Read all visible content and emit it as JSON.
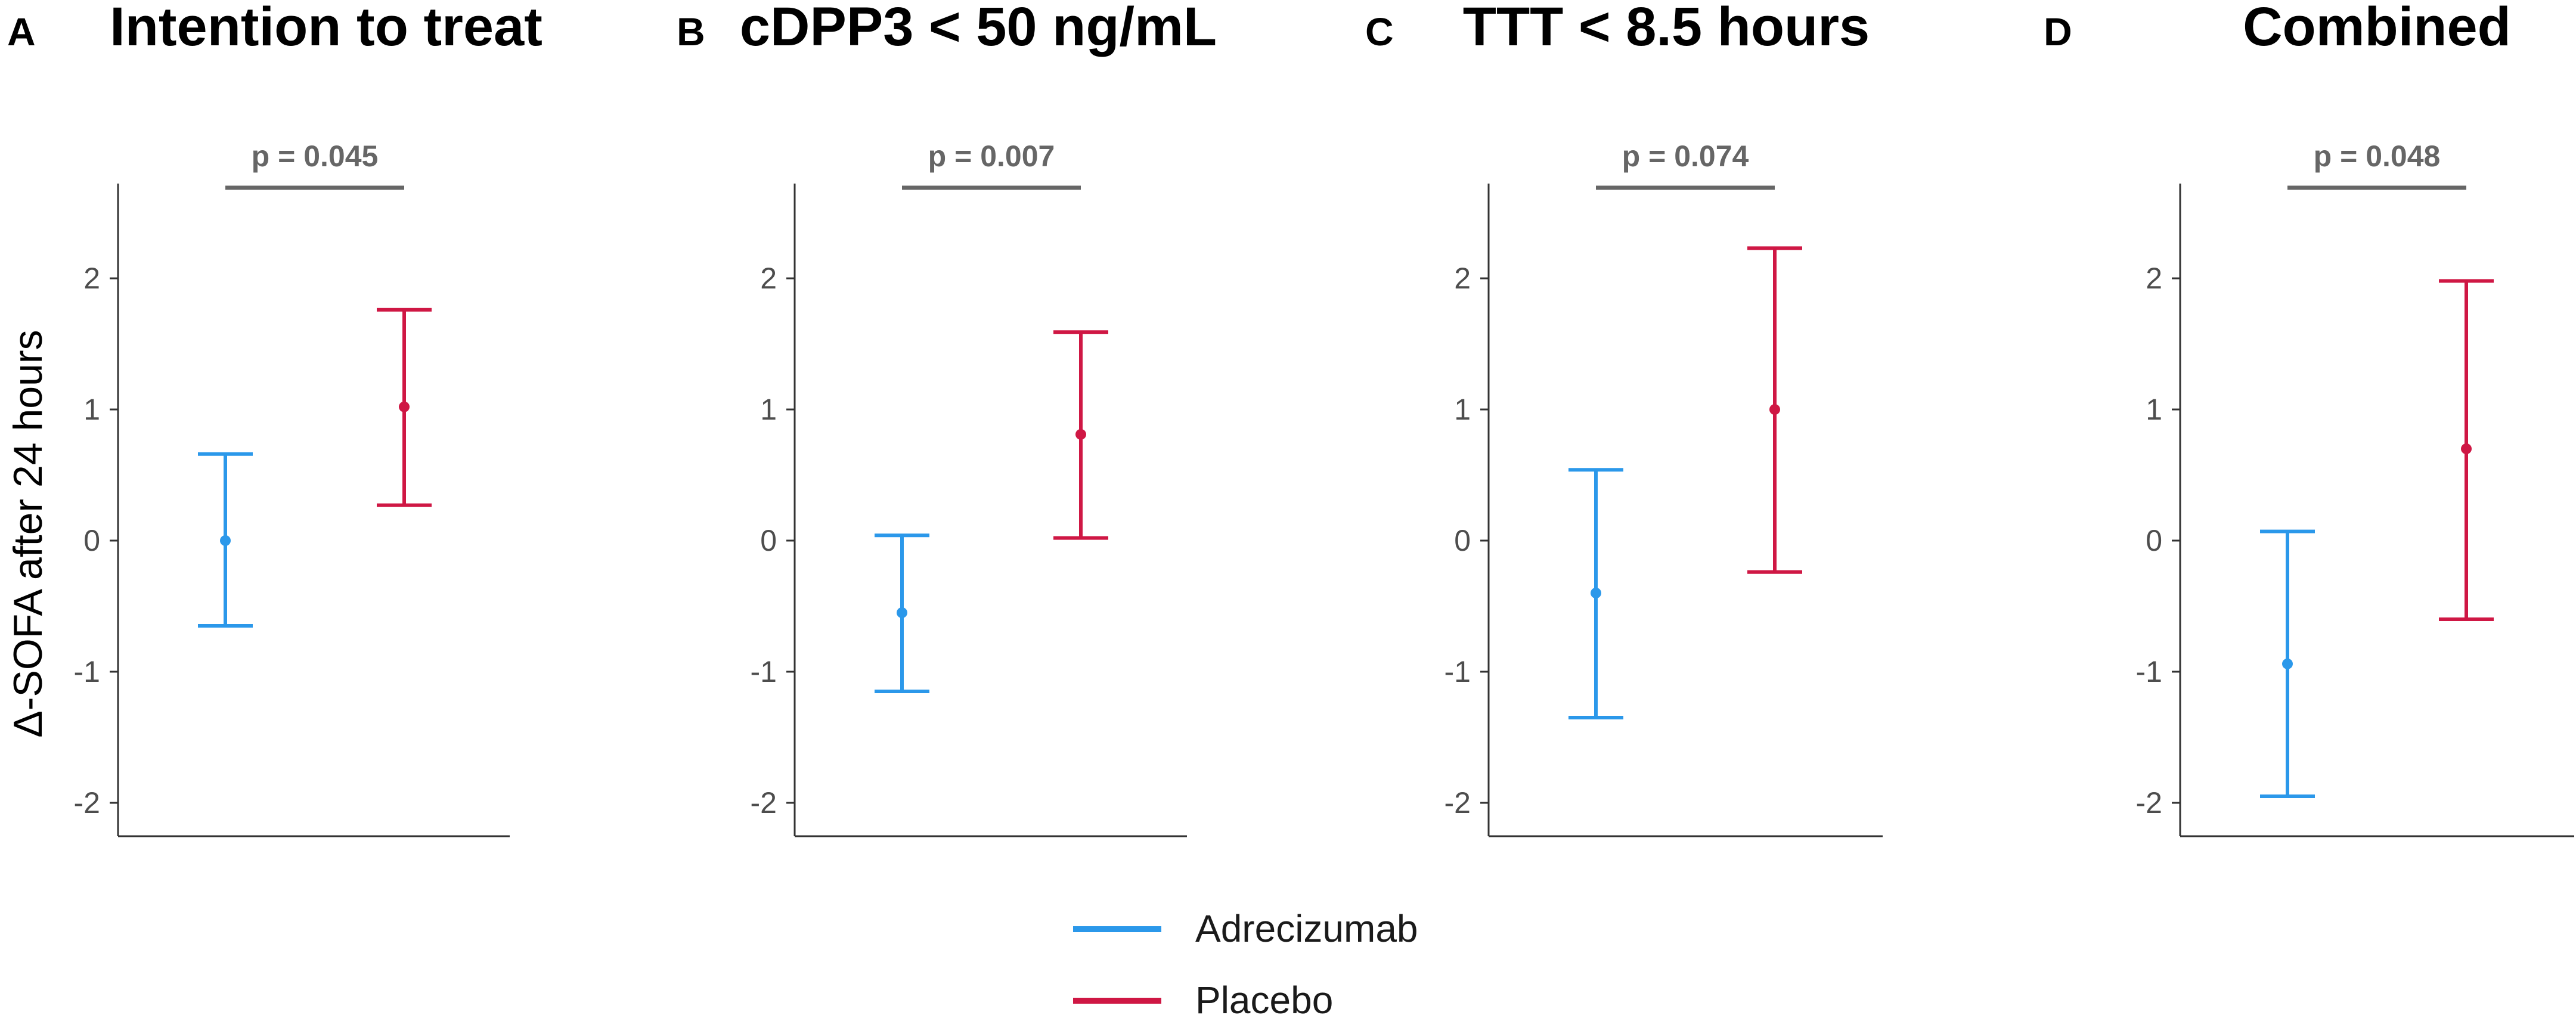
{
  "chart_data": [
    {
      "type": "errorbar",
      "letter": "A",
      "title": "Intention to treat",
      "ylabel": "Δ-SOFA after 24 hours",
      "ylim": [
        -2.25,
        2.75
      ],
      "yticks": [
        2,
        1,
        0,
        -1,
        -2
      ],
      "ytick_labels": [
        "2",
        "1",
        "0",
        "-1",
        "-2"
      ],
      "p_value": "p = 0.045",
      "series": [
        {
          "name": "Adrecizumab",
          "mean": 0.0,
          "lower": -0.65,
          "upper": 0.66
        },
        {
          "name": "Placebo",
          "mean": 1.02,
          "lower": 0.27,
          "upper": 1.76
        }
      ]
    },
    {
      "type": "errorbar",
      "letter": "B",
      "title": "cDPP3 < 50 ng/mL",
      "ylabel": "",
      "ylim": [
        -2.25,
        2.75
      ],
      "yticks": [
        2,
        1,
        0,
        -1,
        -2
      ],
      "ytick_labels": [
        "2",
        "1",
        "0",
        "-1",
        "-2"
      ],
      "p_value": "p = 0.007",
      "series": [
        {
          "name": "Adrecizumab",
          "mean": -0.55,
          "lower": -1.15,
          "upper": 0.04
        },
        {
          "name": "Placebo",
          "mean": 0.81,
          "lower": 0.02,
          "upper": 1.59
        }
      ]
    },
    {
      "type": "errorbar",
      "letter": "C",
      "title": "TTT < 8.5 hours",
      "ylabel": "",
      "ylim": [
        -2.25,
        2.75
      ],
      "yticks": [
        2,
        1,
        0,
        -1,
        -2
      ],
      "ytick_labels": [
        "2",
        "1",
        "0",
        "-1",
        "-2"
      ],
      "p_value": "p = 0.074",
      "series": [
        {
          "name": "Adrecizumab",
          "mean": -0.4,
          "lower": -1.35,
          "upper": 0.54
        },
        {
          "name": "Placebo",
          "mean": 1.0,
          "lower": -0.24,
          "upper": 2.23
        }
      ]
    },
    {
      "type": "errorbar",
      "letter": "D",
      "title": "Combined",
      "ylabel": "",
      "ylim": [
        -2.25,
        2.75
      ],
      "yticks": [
        2,
        1,
        0,
        -1,
        -2
      ],
      "ytick_labels": [
        "2",
        "1",
        "0",
        "-1",
        "-2"
      ],
      "p_value": "p = 0.048",
      "series": [
        {
          "name": "Adrecizumab",
          "mean": -0.94,
          "lower": -1.95,
          "upper": 0.07
        },
        {
          "name": "Placebo",
          "mean": 0.7,
          "lower": -0.6,
          "upper": 1.98
        }
      ]
    }
  ],
  "legend": {
    "items": [
      {
        "name": "Adrecizumab",
        "color": "#2b98ea"
      },
      {
        "name": "Placebo",
        "color": "#cf1744"
      }
    ]
  }
}
